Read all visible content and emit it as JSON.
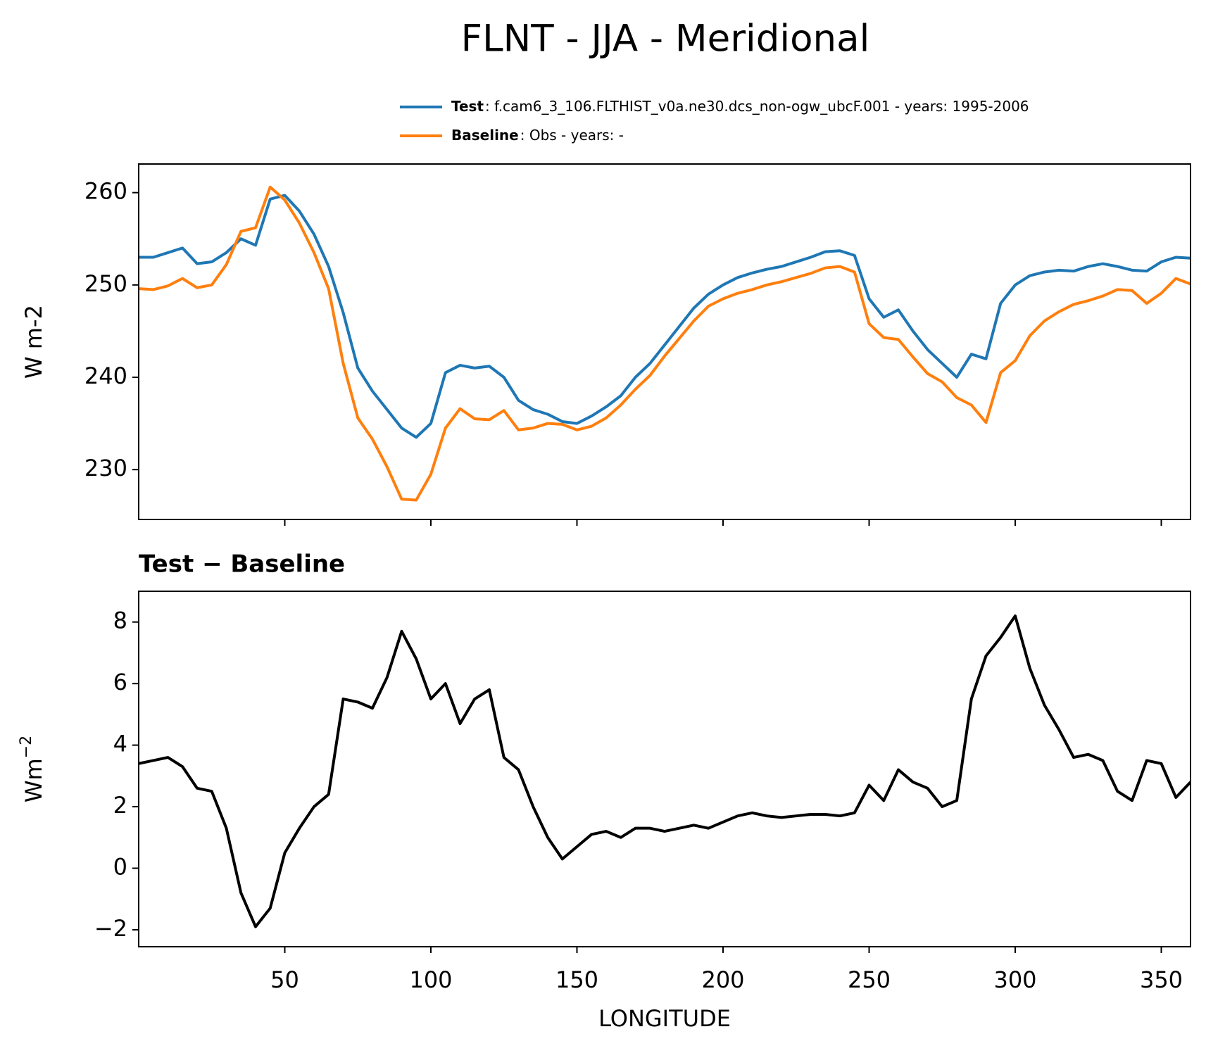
{
  "title": "FLNT - JJA - Meridional",
  "chart_data": [
    {
      "type": "line",
      "ylabel": "W m-2",
      "x": [
        0,
        5,
        10,
        15,
        20,
        25,
        30,
        35,
        40,
        45,
        50,
        55,
        60,
        65,
        70,
        75,
        80,
        85,
        90,
        95,
        100,
        105,
        110,
        115,
        120,
        125,
        130,
        135,
        140,
        145,
        150,
        155,
        160,
        165,
        170,
        175,
        180,
        185,
        190,
        195,
        200,
        205,
        210,
        215,
        220,
        225,
        230,
        235,
        240,
        245,
        250,
        255,
        260,
        265,
        270,
        275,
        280,
        285,
        290,
        295,
        300,
        305,
        310,
        315,
        320,
        325,
        330,
        335,
        340,
        345,
        350,
        355,
        360
      ],
      "series": [
        {
          "name": "Test",
          "label": ": f.cam6_3_106.FLTHIST_v0a.ne30.dcs_non-ogw_ubcF.001 - years: 1995-2006",
          "color": "#1f77b4",
          "values": [
            253,
            253,
            253.5,
            254,
            252.3,
            252.5,
            253.5,
            255,
            254.3,
            259.3,
            259.7,
            258,
            255.5,
            252,
            247,
            241,
            238.5,
            236.5,
            234.5,
            233.5,
            235,
            240.5,
            241.3,
            241,
            241.2,
            240,
            237.5,
            236.5,
            236,
            235.2,
            235,
            235.8,
            236.8,
            238,
            240,
            241.5,
            243.5,
            245.5,
            247.5,
            249,
            250,
            250.8,
            251.3,
            251.7,
            252,
            252.5,
            253,
            253.6,
            253.7,
            253.2,
            248.5,
            246.5,
            247.3,
            245,
            243,
            241.5,
            240,
            242.5,
            242,
            248,
            250,
            251,
            251.4,
            251.6,
            251.5,
            252,
            252.3,
            252,
            251.6,
            251.5,
            252.5,
            253,
            252.9
          ]
        },
        {
          "name": "Baseline",
          "label": ": Obs - years: -",
          "color": "#ff7f0e",
          "values": [
            249.6,
            249.5,
            249.9,
            250.7,
            249.7,
            250,
            252.2,
            255.8,
            256.2,
            260.6,
            259.2,
            256.7,
            253.5,
            249.6,
            241.5,
            235.6,
            233.3,
            230.3,
            226.8,
            226.7,
            229.5,
            234.5,
            236.6,
            235.5,
            235.4,
            236.4,
            234.3,
            234.5,
            235,
            234.9,
            234.3,
            234.7,
            235.6,
            237,
            238.7,
            240.2,
            242.3,
            244.2,
            246.1,
            247.7,
            248.5,
            249.1,
            249.5,
            250,
            250.35,
            250.8,
            251.25,
            251.85,
            252,
            251.4,
            245.8,
            244.3,
            244.1,
            242.2,
            240.4,
            239.5,
            237.8,
            237,
            235.1,
            240.5,
            241.8,
            244.5,
            246.1,
            247.1,
            247.9,
            248.3,
            248.8,
            249.5,
            249.4,
            248,
            249.1,
            250.7,
            250.1
          ]
        }
      ],
      "xlim": [
        0,
        360
      ],
      "xticks": [
        50,
        100,
        150,
        200,
        250,
        300,
        350
      ],
      "ylim": [
        224.6,
        263.1
      ],
      "yticks": [
        230,
        240,
        250,
        260
      ]
    },
    {
      "type": "line",
      "title": "Test − Baseline",
      "xlabel": "LONGITUDE",
      "ylabel": "Wm",
      "ylabel_superscript": "−2",
      "x": [
        0,
        5,
        10,
        15,
        20,
        25,
        30,
        35,
        40,
        45,
        50,
        55,
        60,
        65,
        70,
        75,
        80,
        85,
        90,
        95,
        100,
        105,
        110,
        115,
        120,
        125,
        130,
        135,
        140,
        145,
        150,
        155,
        160,
        165,
        170,
        175,
        180,
        185,
        190,
        195,
        200,
        205,
        210,
        215,
        220,
        225,
        230,
        235,
        240,
        245,
        250,
        255,
        260,
        265,
        270,
        275,
        280,
        285,
        290,
        295,
        300,
        305,
        310,
        315,
        320,
        325,
        330,
        335,
        340,
        345,
        350,
        355,
        360
      ],
      "series": [
        {
          "color": "#000000",
          "values": [
            3.4,
            3.5,
            3.6,
            3.3,
            2.6,
            2.5,
            1.3,
            -0.8,
            -1.9,
            -1.3,
            0.5,
            1.3,
            2,
            2.4,
            5.5,
            5.4,
            5.2,
            6.2,
            7.7,
            6.8,
            5.5,
            6,
            4.7,
            5.5,
            5.8,
            3.6,
            3.2,
            2,
            1,
            0.3,
            0.7,
            1.1,
            1.2,
            1,
            1.3,
            1.3,
            1.2,
            1.3,
            1.4,
            1.3,
            1.5,
            1.7,
            1.8,
            1.7,
            1.65,
            1.7,
            1.75,
            1.75,
            1.7,
            1.8,
            2.7,
            2.2,
            3.2,
            2.8,
            2.6,
            2,
            2.2,
            5.5,
            6.9,
            7.5,
            8.2,
            6.5,
            5.3,
            4.5,
            3.6,
            3.7,
            3.5,
            2.5,
            2.2,
            3.5,
            3.4,
            2.3,
            2.8
          ]
        }
      ],
      "xlim": [
        0,
        360
      ],
      "xticks": [
        50,
        100,
        150,
        200,
        250,
        300,
        350
      ],
      "ylim": [
        -2.55,
        9.0
      ],
      "yticks": [
        {
          "value": -2,
          "label": "−2"
        },
        0,
        2,
        4,
        6,
        8
      ]
    }
  ]
}
